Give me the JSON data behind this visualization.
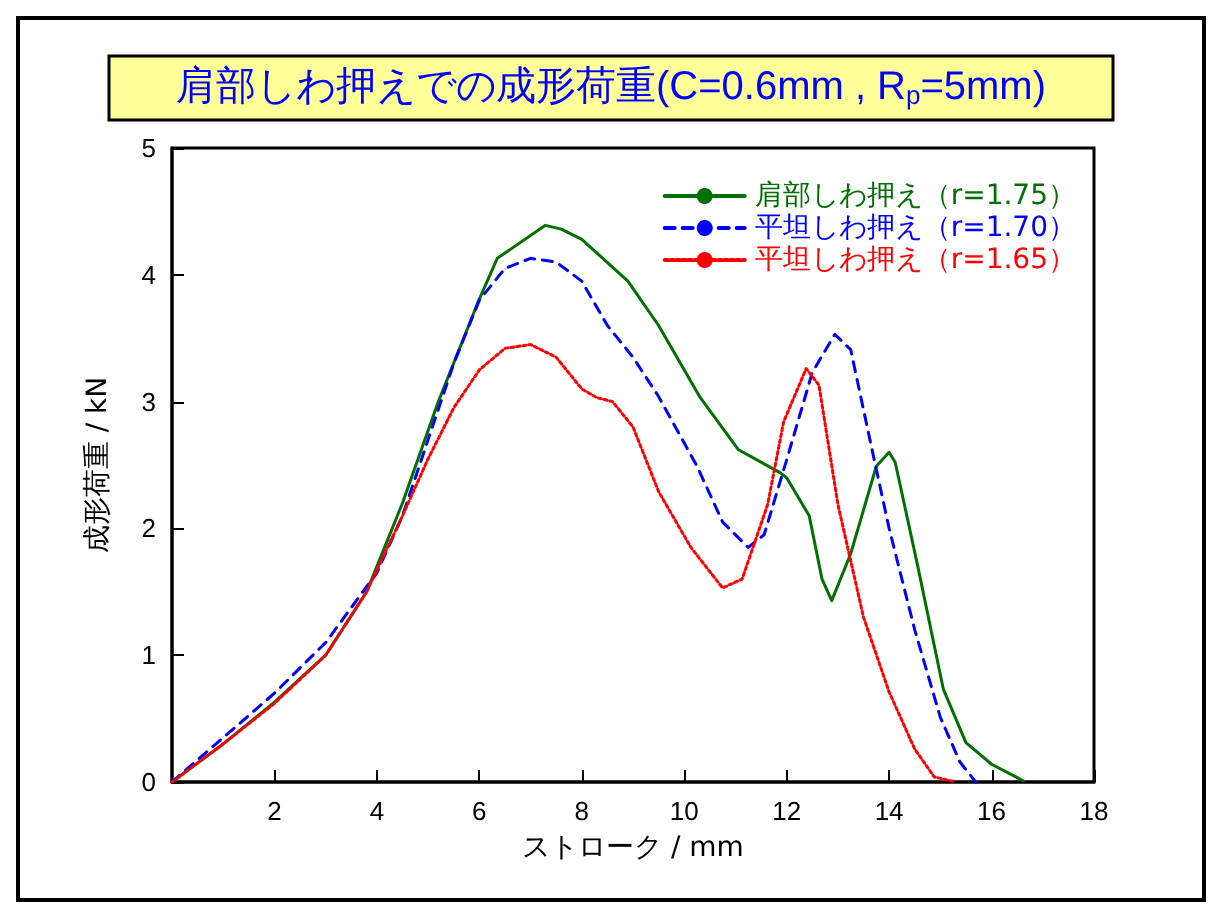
{
  "chart_data": {
    "type": "line",
    "title": "肩部しわ押えでの成形荷重(C=0.6mm , R$_{p}$=5mm)",
    "xlabel": "ストローク / mm",
    "ylabel": "成形荷重 / kN",
    "xlim": [
      0,
      18
    ],
    "xticks": [
      2,
      4,
      6,
      8,
      10,
      12,
      14,
      16,
      18
    ],
    "ylim": [
      0,
      5
    ],
    "yticks": [
      0,
      1,
      2,
      3,
      4,
      5
    ],
    "grid": false,
    "legend": "top right",
    "marker": "none",
    "series": [
      {
        "name": "肩部しわ押え（r=1.75）",
        "color": "#007000",
        "line_style": "solid",
        "x": [
          0,
          1,
          2,
          3,
          3.8,
          4.5,
          5.2,
          5.97,
          6.35,
          7.29,
          7.6,
          8,
          8.9,
          9.5,
          10.3,
          11.06,
          11.87,
          12.0,
          12.44,
          12.69,
          12.88,
          13.25,
          13.75,
          14.0,
          14.12,
          14.56,
          15.06,
          15.5,
          16,
          16.62
        ],
        "values": [
          0,
          0.3,
          0.63,
          1.0,
          1.5,
          2.2,
          3.0,
          3.78,
          4.13,
          4.39,
          4.36,
          4.28,
          3.95,
          3.6,
          3.04,
          2.62,
          2.44,
          2.4,
          2.1,
          1.6,
          1.43,
          1.8,
          2.49,
          2.6,
          2.52,
          1.7,
          0.73,
          0.31,
          0.14,
          0.01
        ]
      },
      {
        "name": "平坦しわ押え（r=1.70）",
        "color": "#0000ff",
        "line_style": "dashed",
        "x": [
          0,
          1,
          2,
          3,
          4,
          4.5,
          5,
          5.5,
          6,
          6.5,
          7,
          7.5,
          8,
          8.5,
          9,
          9.5,
          10.25,
          10.75,
          11.25,
          11.56,
          12,
          12.5,
          12.94,
          13.25,
          13.63,
          14,
          14.5,
          15,
          15.38,
          15.69
        ],
        "values": [
          0,
          0.35,
          0.7,
          1.1,
          1.65,
          2.1,
          2.7,
          3.3,
          3.8,
          4.05,
          4.13,
          4.1,
          3.95,
          3.6,
          3.35,
          3.04,
          2.49,
          2.05,
          1.85,
          1.95,
          2.54,
          3.23,
          3.53,
          3.41,
          2.69,
          2.0,
          1.2,
          0.51,
          0.16,
          0
        ]
      },
      {
        "name": "平坦しわ押え（r=1.65）",
        "color": "#ff0000",
        "line_style": "dotted",
        "x": [
          0,
          1,
          2,
          3,
          3.8,
          4.5,
          5,
          5.5,
          6,
          6.5,
          7,
          7.5,
          8,
          8.3,
          8.6,
          9,
          9.5,
          10.13,
          10.75,
          11.13,
          11.63,
          11.94,
          12.38,
          12.63,
          13.0,
          13.5,
          14,
          14.5,
          14.88,
          15.3
        ],
        "values": [
          0,
          0.3,
          0.62,
          1.0,
          1.5,
          2.1,
          2.55,
          2.95,
          3.25,
          3.42,
          3.45,
          3.35,
          3.1,
          3.03,
          3.0,
          2.8,
          2.29,
          1.85,
          1.53,
          1.6,
          2.19,
          2.84,
          3.26,
          3.13,
          2.19,
          1.3,
          0.71,
          0.26,
          0.04,
          0
        ]
      }
    ]
  }
}
